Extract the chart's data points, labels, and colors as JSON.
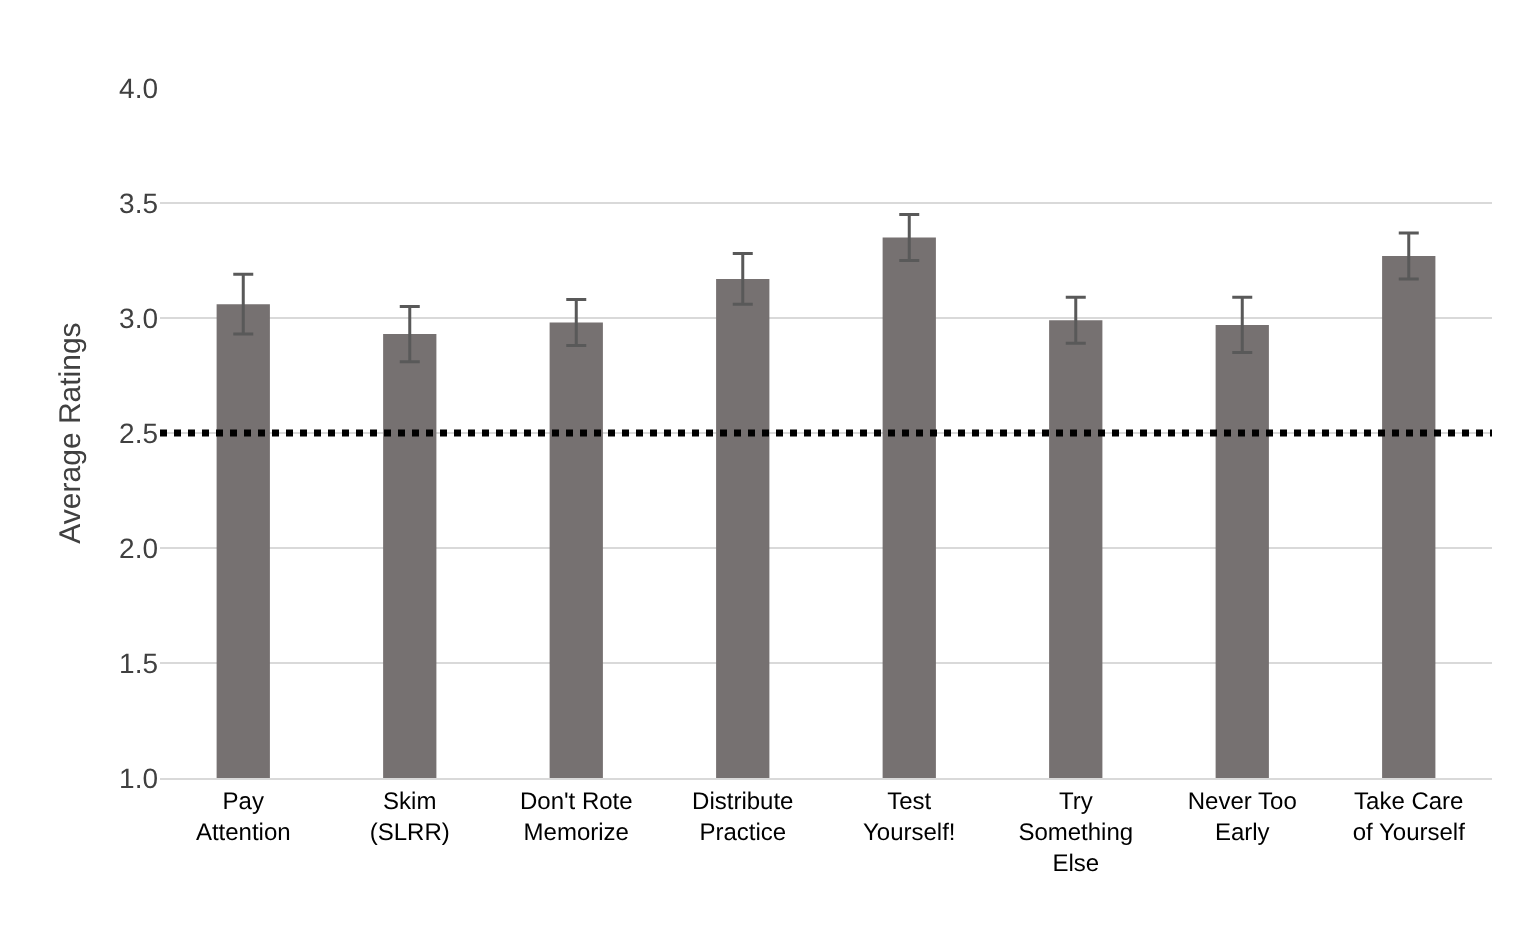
{
  "chart_data": {
    "type": "bar",
    "ylabel": "Average Ratings",
    "categories": [
      "Pay\nAttention",
      "Skim\n(SLRR)",
      "Don't Rote\nMemorize",
      "Distribute\nPractice",
      "Test\nYourself!",
      "Try\nSomething\nElse",
      "Never Too\nEarly",
      "Take Care\nof Yourself"
    ],
    "values": [
      3.06,
      2.93,
      2.98,
      3.17,
      3.35,
      2.99,
      2.97,
      3.27
    ],
    "errors": [
      0.13,
      0.12,
      0.1,
      0.11,
      0.1,
      0.1,
      0.12,
      0.1
    ],
    "color": "#767171",
    "ylim": [
      1.0,
      4.0
    ],
    "yticks": [
      {
        "value": 1.0,
        "label": "1.0"
      },
      {
        "value": 1.5,
        "label": "1.5"
      },
      {
        "value": 2.0,
        "label": "2.0"
      },
      {
        "value": 2.5,
        "label": "2.5"
      },
      {
        "value": 3.0,
        "label": "3.0"
      },
      {
        "value": 3.5,
        "label": "3.5"
      },
      {
        "value": 4.0,
        "label": "4.0"
      }
    ],
    "grid": "y",
    "ref_lines": [
      {
        "axis": "y",
        "value": 2.5,
        "color": "#000000",
        "line_style": "dotted"
      }
    ]
  }
}
